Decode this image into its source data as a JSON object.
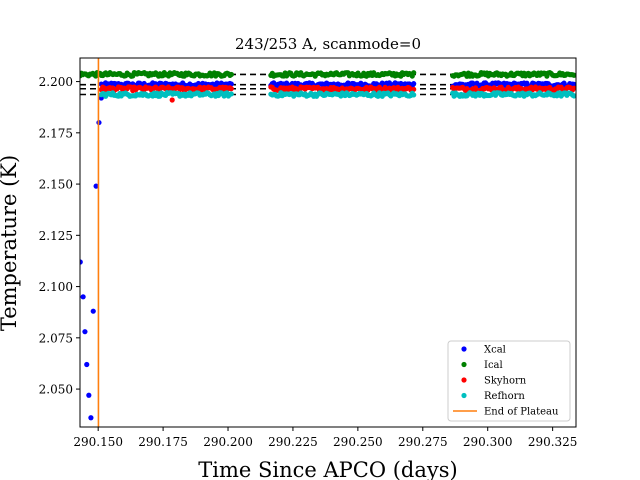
{
  "chart_data": {
    "type": "scatter",
    "title": "243/253 A, scanmode=0",
    "xlabel": "Time Since APCO (days)",
    "ylabel": "Temperature (K)",
    "xlim": [
      290.143,
      290.334
    ],
    "ylim": [
      2.0315,
      2.2115
    ],
    "x_ticks": [
      290.15,
      290.175,
      290.2,
      290.225,
      290.25,
      290.275,
      290.3,
      290.325
    ],
    "x_tick_labels": [
      "290.150",
      "290.175",
      "290.200",
      "290.225",
      "290.250",
      "290.275",
      "290.300",
      "290.325"
    ],
    "y_ticks": [
      2.05,
      2.075,
      2.1,
      2.125,
      2.15,
      2.175,
      2.2
    ],
    "y_tick_labels": [
      "2.050",
      "2.075",
      "2.100",
      "2.125",
      "2.150",
      "2.175",
      "2.200"
    ],
    "grid": false,
    "legend_position": "lower-right",
    "series": [
      {
        "name": "Xcal",
        "color": "#0000ff",
        "mean": 2.1985,
        "segments": [
          [
            290.1512,
            290.2015
          ],
          [
            290.2165,
            290.2715
          ],
          [
            290.2865,
            290.3335
          ]
        ],
        "transient": [
          {
            "x": 290.1431,
            "y": 2.112
          },
          {
            "x": 290.1442,
            "y": 2.095
          },
          {
            "x": 290.1449,
            "y": 2.078
          },
          {
            "x": 290.1456,
            "y": 2.062
          },
          {
            "x": 290.1464,
            "y": 2.047
          },
          {
            "x": 290.1472,
            "y": 2.036
          },
          {
            "x": 290.1481,
            "y": 2.088
          },
          {
            "x": 290.1492,
            "y": 2.149
          },
          {
            "x": 290.1503,
            "y": 2.18
          },
          {
            "x": 290.1512,
            "y": 2.192
          }
        ]
      },
      {
        "name": "Ical",
        "color": "#008000",
        "mean": 2.2035,
        "segments": [
          [
            290.143,
            290.2015
          ],
          [
            290.2165,
            290.2715
          ],
          [
            290.2865,
            290.3335
          ]
        ]
      },
      {
        "name": "Skyhorn",
        "color": "#ff0000",
        "mean": 2.1965,
        "segments": [
          [
            290.1512,
            290.2015
          ],
          [
            290.2165,
            290.2715
          ],
          [
            290.2865,
            290.3335
          ]
        ],
        "outliers": [
          {
            "x": 290.1785,
            "y": 2.191
          }
        ]
      },
      {
        "name": "Refhorn",
        "color": "#00bfbf",
        "mean": 2.1937,
        "segments": [
          [
            290.1512,
            290.2015
          ],
          [
            290.2165,
            290.2715
          ],
          [
            290.2865,
            290.3335
          ]
        ]
      }
    ],
    "reference_lines": {
      "style": "dashed",
      "color": "#000000",
      "y": [
        2.2035,
        2.1985,
        2.1965,
        2.1937
      ]
    },
    "vertical_line": {
      "name": "End of Plateau",
      "color": "#ff7f0e",
      "x": 290.1501
    }
  }
}
